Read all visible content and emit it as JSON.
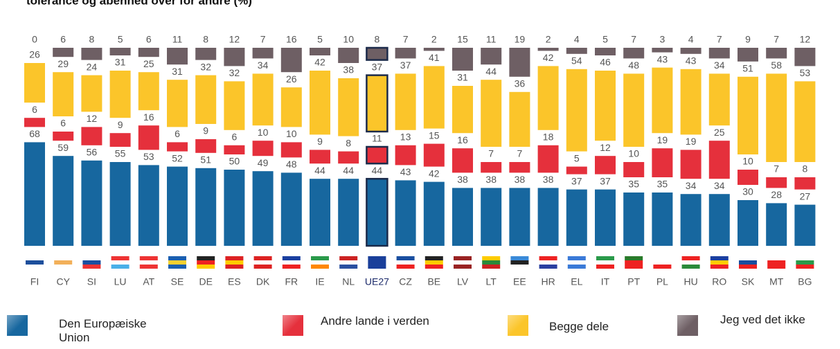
{
  "chart_data": {
    "type": "stacked_bar",
    "title": "tolerance og åbenhed over for andre (%)",
    "categories": [
      "FI",
      "CY",
      "SI",
      "LU",
      "AT",
      "SE",
      "DE",
      "ES",
      "DK",
      "FR",
      "IE",
      "NL",
      "UE27",
      "CZ",
      "BE",
      "LV",
      "LT",
      "EE",
      "HR",
      "EL",
      "IT",
      "PT",
      "PL",
      "HU",
      "RO",
      "SK",
      "MT",
      "BG"
    ],
    "highlight": "UE27",
    "series": [
      {
        "name": "Den Europæiske Union",
        "color": "#17679f",
        "values": [
          68,
          59,
          56,
          55,
          53,
          52,
          51,
          50,
          49,
          48,
          44,
          44,
          44,
          43,
          42,
          38,
          38,
          38,
          38,
          37,
          37,
          35,
          35,
          34,
          34,
          30,
          28,
          27
        ]
      },
      {
        "name": "Andre lande i verden",
        "color": "#e5303c",
        "values": [
          6,
          6,
          12,
          9,
          16,
          6,
          9,
          6,
          10,
          10,
          9,
          8,
          11,
          13,
          15,
          16,
          7,
          7,
          18,
          5,
          12,
          10,
          19,
          19,
          25,
          10,
          7,
          8
        ]
      },
      {
        "name": "Begge dele",
        "color": "#fbc52a",
        "values": [
          26,
          29,
          24,
          31,
          25,
          31,
          32,
          32,
          34,
          26,
          42,
          38,
          37,
          37,
          41,
          31,
          44,
          36,
          42,
          54,
          46,
          48,
          43,
          43,
          34,
          51,
          58,
          53
        ]
      },
      {
        "name": "Jeg ved det ikke",
        "color": "#6e5f64",
        "values": [
          0,
          6,
          8,
          5,
          6,
          11,
          8,
          12,
          7,
          16,
          5,
          10,
          8,
          7,
          2,
          15,
          11,
          19,
          2,
          4,
          5,
          7,
          3,
          4,
          7,
          9,
          7,
          12
        ]
      }
    ]
  }
}
